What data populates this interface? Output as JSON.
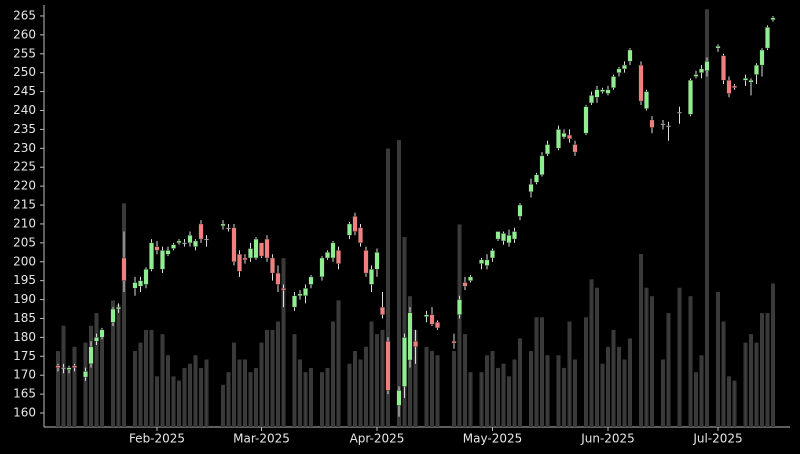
{
  "chart_data": {
    "type": "candlestick",
    "categories": [
      null,
      null,
      null,
      null,
      null,
      null,
      null,
      null,
      null,
      null,
      null,
      null,
      null,
      null,
      null,
      null,
      null,
      null,
      "Feb-2025",
      null,
      null,
      null,
      null,
      null,
      null,
      null,
      null,
      null,
      null,
      null,
      null,
      null,
      null,
      null,
      null,
      null,
      null,
      "Mar-2025",
      null,
      null,
      null,
      null,
      null,
      null,
      null,
      null,
      null,
      null,
      null,
      null,
      null,
      null,
      null,
      null,
      null,
      null,
      null,
      null,
      "Apr-2025",
      null,
      null,
      null,
      null,
      null,
      null,
      null,
      null,
      null,
      null,
      null,
      null,
      null,
      null,
      null,
      null,
      null,
      null,
      null,
      null,
      "May-2025",
      null,
      null,
      null,
      null,
      null,
      null,
      null,
      null,
      null,
      null,
      null,
      null,
      null,
      null,
      null,
      null,
      null,
      null,
      null,
      null,
      "Jun-2025",
      null,
      null,
      null,
      null,
      null,
      null,
      null,
      null,
      null,
      null,
      null,
      null,
      null,
      null,
      null,
      null,
      null,
      null,
      null,
      "Jul-2025",
      null,
      null,
      null,
      null,
      null,
      null,
      null,
      null,
      null,
      null
    ],
    "open": [
      172.5,
      172,
      171.5,
      172.5,
      null,
      169.5,
      173,
      179,
      180,
      null,
      184,
      187.5,
      201,
      null,
      193,
      193.5,
      194,
      198,
      204,
      198,
      202,
      203.5,
      205,
      205,
      205,
      204,
      210,
      206,
      null,
      null,
      209.5,
      209,
      209,
      202,
      201,
      201,
      201,
      205,
      206,
      201,
      197,
      193,
      null,
      188,
      191,
      191,
      194,
      null,
      196,
      201,
      201,
      203,
      null,
      207,
      212,
      209,
      203,
      194,
      198,
      188,
      179,
      null,
      162,
      167,
      174,
      179,
      null,
      185.5,
      186,
      184,
      null,
      null,
      179,
      186,
      194.5,
      195,
      null,
      199.5,
      199,
      201,
      206,
      205.5,
      205,
      206,
      212,
      null,
      218.5,
      221,
      223,
      228.5,
      null,
      230,
      233,
      233.5,
      231,
      null,
      234,
      242,
      243.5,
      245,
      244.5,
      246,
      250,
      251,
      253,
      null,
      252,
      240.5,
      237.5,
      null,
      236.5,
      236,
      null,
      239.5,
      null,
      239,
      249,
      250,
      250.5,
      null,
      256.5,
      254.5,
      248,
      246.5,
      null,
      248,
      247.5,
      249.5,
      252,
      256.5,
      264
    ],
    "high": [
      173,
      173,
      172.5,
      173,
      null,
      172,
      179,
      181,
      182.5,
      null,
      188,
      189,
      208,
      null,
      196,
      196,
      198.5,
      206,
      205.5,
      204,
      204,
      205,
      206,
      206,
      208,
      206,
      211,
      207,
      null,
      null,
      211,
      210,
      210,
      203,
      202,
      205,
      206.5,
      205,
      207,
      202,
      199,
      194,
      null,
      192,
      192.5,
      194,
      196.5,
      null,
      201.5,
      203,
      205.5,
      204,
      null,
      210.5,
      213,
      210,
      204,
      199,
      203.5,
      192,
      180,
      null,
      167,
      181,
      188,
      182,
      null,
      187,
      188,
      184.5,
      null,
      null,
      181,
      191,
      196,
      196.5,
      null,
      201,
      202,
      203.5,
      208,
      208,
      208.5,
      209,
      215.5,
      null,
      222,
      223.5,
      229,
      232,
      null,
      236,
      235,
      235,
      232,
      null,
      241.5,
      245,
      246.5,
      246,
      246.5,
      249.5,
      251.5,
      253,
      256.5,
      null,
      253,
      245.5,
      238.5,
      null,
      237.5,
      237,
      null,
      241,
      null,
      248.5,
      250.5,
      252,
      254,
      null,
      257.5,
      255,
      249,
      247,
      null,
      249.5,
      248.5,
      252.5,
      256.5,
      262.5,
      265
    ],
    "low": [
      171,
      170.5,
      170.5,
      171,
      null,
      168.5,
      172,
      178,
      179.5,
      null,
      183,
      186.5,
      192,
      null,
      191,
      192,
      193,
      197.5,
      202,
      197,
      201.5,
      203,
      204.5,
      204,
      204,
      203,
      205,
      204,
      null,
      null,
      208.5,
      208,
      199,
      196,
      199.5,
      200,
      200.5,
      201,
      200,
      195,
      192,
      188,
      null,
      187,
      190,
      189,
      193,
      null,
      195,
      200.5,
      200,
      198,
      null,
      206,
      207,
      204,
      196,
      192,
      196,
      185,
      165,
      null,
      159,
      164,
      172,
      173,
      null,
      184,
      183,
      182,
      null,
      null,
      177,
      185,
      192.5,
      194.5,
      null,
      198,
      198,
      200,
      205.5,
      204.5,
      204,
      205,
      211,
      null,
      217,
      220.5,
      222.5,
      228,
      null,
      229.5,
      232.5,
      231.5,
      228,
      null,
      233.5,
      241.5,
      242,
      244.5,
      244,
      245.5,
      249,
      250,
      252,
      null,
      241.5,
      240,
      234,
      null,
      235,
      232,
      null,
      236.5,
      null,
      238.5,
      248.5,
      248.5,
      249,
      null,
      255.5,
      247,
      243.5,
      245.5,
      null,
      246.5,
      244,
      247,
      249,
      256,
      263.5
    ],
    "close": [
      172,
      172,
      172,
      172,
      null,
      171,
      177.5,
      180,
      182,
      null,
      187.5,
      188,
      195,
      null,
      194.5,
      195,
      198,
      205,
      203,
      203,
      203,
      204.5,
      205.5,
      205,
      207,
      205.5,
      206,
      206,
      null,
      null,
      210,
      209,
      200,
      197.5,
      200.5,
      203.5,
      206,
      201.5,
      201,
      197,
      194,
      192.5,
      null,
      191,
      191.5,
      193,
      196,
      null,
      201,
      202.5,
      205,
      199.5,
      null,
      210,
      208,
      205,
      197,
      198,
      202.5,
      186,
      166,
      null,
      166,
      180,
      186.5,
      177.5,
      null,
      186,
      183.5,
      182.5,
      null,
      null,
      178.5,
      190,
      193.5,
      196,
      null,
      200.5,
      200.5,
      203,
      208,
      207.5,
      207,
      208,
      215,
      null,
      220.5,
      223,
      228,
      231,
      null,
      235,
      234,
      232.5,
      229,
      null,
      241,
      244,
      245.5,
      245.5,
      245.5,
      249,
      251,
      252,
      256,
      null,
      242.5,
      245,
      235.5,
      null,
      236.5,
      236,
      null,
      239.5,
      null,
      248,
      249.5,
      251,
      253,
      null,
      257,
      248,
      244.5,
      246,
      null,
      248.5,
      248,
      252,
      256,
      262,
      264.5
    ],
    "volume": [
      18,
      24,
      14,
      19,
      null,
      20,
      24,
      27,
      22,
      null,
      30,
      29,
      53,
      null,
      18,
      20,
      23,
      23,
      12,
      22,
      17,
      12,
      11,
      14,
      15,
      17,
      14,
      16,
      null,
      null,
      10,
      13,
      20,
      16,
      16,
      13,
      14,
      20,
      23,
      23,
      25,
      40,
      null,
      22,
      16,
      13,
      14,
      null,
      13,
      14,
      25,
      30,
      null,
      15,
      18,
      16,
      19,
      25,
      22,
      23,
      66,
      null,
      68,
      45,
      31,
      23,
      null,
      19,
      18,
      17,
      null,
      null,
      18,
      48,
      22,
      13,
      null,
      13,
      17,
      18,
      14,
      15,
      12,
      16,
      21,
      null,
      18,
      26,
      26,
      17,
      null,
      17,
      14,
      25,
      16,
      null,
      26,
      35,
      33,
      15,
      19,
      23,
      19,
      16,
      21,
      null,
      41,
      33,
      31,
      null,
      16,
      27,
      null,
      33,
      null,
      31,
      13,
      17,
      99,
      null,
      32,
      25,
      12,
      11,
      null,
      20,
      22,
      20,
      27,
      27,
      34
    ],
    "ylim": [
      156.3,
      267.9
    ],
    "yticks": [
      160,
      165,
      170,
      175,
      180,
      185,
      190,
      195,
      200,
      205,
      210,
      215,
      220,
      225,
      230,
      235,
      240,
      245,
      250,
      255,
      260,
      265
    ],
    "vlim": [
      0,
      100
    ],
    "up_color": "#90ee90",
    "down_color": "#f08080",
    "flat_color": "#ffffff",
    "volume_color": "#3a3a3a"
  }
}
